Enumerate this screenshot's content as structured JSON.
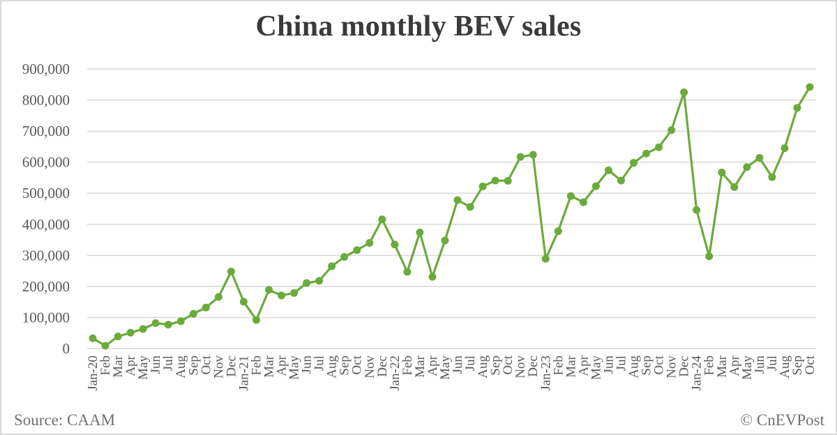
{
  "title": "China monthly BEV sales",
  "source": "Source: CAAM",
  "credit": "© CnEVPost",
  "colors": {
    "line": "#6aab3c",
    "grid": "#d9d9d9",
    "text": "#595959"
  },
  "chart_data": {
    "type": "line",
    "title": "China monthly BEV sales",
    "xlabel": "",
    "ylabel": "",
    "ylim": [
      0,
      900000
    ],
    "yticks": [
      0,
      100000,
      200000,
      300000,
      400000,
      500000,
      600000,
      700000,
      800000,
      900000
    ],
    "ytick_labels": [
      "0",
      "100,000",
      "200,000",
      "300,000",
      "400,000",
      "500,000",
      "600,000",
      "700,000",
      "800,000",
      "900,000"
    ],
    "grid": true,
    "legend": "none",
    "categories": [
      "Jan-20",
      "Feb",
      "Mar",
      "Apr",
      "May",
      "Jun",
      "Jul",
      "Aug",
      "Sep",
      "Oct",
      "Nov",
      "Dec",
      "Jan-21",
      "Feb",
      "Mar",
      "Apr",
      "May",
      "Jun",
      "Jul",
      "Aug",
      "Sep",
      "Oct",
      "Nov",
      "Dec",
      "Jan-22",
      "Feb",
      "Mar",
      "Apr",
      "May",
      "Jun",
      "Jul",
      "Aug",
      "Sep",
      "Oct",
      "Nov",
      "Dec",
      "Jan-23",
      "Feb",
      "Mar",
      "Apr",
      "May",
      "Jun",
      "Jul",
      "Aug",
      "Sep",
      "Oct",
      "Nov",
      "Dec",
      "Jan-24",
      "Feb",
      "Mar",
      "Apr",
      "May",
      "Jun",
      "Jul",
      "Aug",
      "Sep",
      "Oct"
    ],
    "series": [
      {
        "name": "BEV sales",
        "values": [
          33000,
          9000,
          39000,
          51000,
          63000,
          82000,
          77000,
          88000,
          112000,
          132000,
          166000,
          248000,
          151000,
          92000,
          189000,
          171000,
          179000,
          211000,
          218000,
          265000,
          295000,
          317000,
          340000,
          416000,
          335000,
          247000,
          374000,
          231000,
          348000,
          478000,
          456000,
          522000,
          541000,
          540000,
          617000,
          624000,
          289000,
          378000,
          491000,
          471000,
          523000,
          574000,
          541000,
          598000,
          628000,
          648000,
          703000,
          825000,
          446000,
          297000,
          567000,
          520000,
          584000,
          614000,
          552000,
          645000,
          775000,
          842000
        ]
      }
    ]
  }
}
